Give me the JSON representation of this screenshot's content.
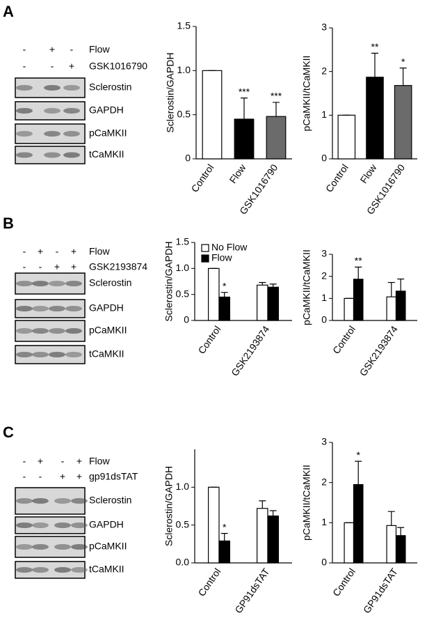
{
  "panels": [
    {
      "label": "A",
      "conditions": [
        {
          "name": "Flow",
          "signs": [
            "-",
            "+",
            "-"
          ]
        },
        {
          "name": "GSK1016790",
          "signs": [
            "-",
            "-",
            "+"
          ]
        }
      ],
      "bands": [
        "Sclerostin",
        "GAPDH",
        "pCaMKII",
        "tCaMKII"
      ]
    },
    {
      "label": "B",
      "conditions": [
        {
          "name": "Flow",
          "signs": [
            "-",
            "+",
            "-",
            "+"
          ]
        },
        {
          "name": "GSK2193874",
          "signs": [
            "-",
            "-",
            "+",
            "+"
          ]
        }
      ],
      "bands": [
        "Sclerostin",
        "GAPDH",
        "pCaMKII",
        "tCaMKII"
      ]
    },
    {
      "label": "C",
      "conditions": [
        {
          "name": "Flow",
          "signs": [
            "-",
            "+",
            "-",
            "+"
          ]
        },
        {
          "name": "gp91dsTAT",
          "signs": [
            "-",
            "-",
            "+",
            "+"
          ]
        }
      ],
      "bands": [
        "Sclerostin",
        "GAPDH",
        "pCaMKII",
        "tCaMKII"
      ]
    }
  ],
  "chart_data": [
    {
      "type": "bar",
      "y_label": "Sclerostin/GAPDH",
      "categories": [
        "Control",
        "Flow",
        "GSK1016790"
      ],
      "values": [
        1.0,
        0.45,
        0.48
      ],
      "errors": [
        0,
        0.24,
        0.16
      ],
      "colors": [
        "#ffffff",
        "#000000",
        "#6b6b6b"
      ],
      "significance": [
        null,
        "***",
        "***"
      ],
      "ylim": [
        0,
        1.5
      ],
      "yticks": [
        0,
        0.5,
        {
          "value": 1.0,
          "label": "1.0"
        },
        1.5
      ]
    },
    {
      "type": "bar",
      "y_label": "pCaMKII/tCaMKII",
      "categories": [
        "Control",
        "Flow",
        "GSK1016790"
      ],
      "values": [
        1.0,
        1.87,
        1.68
      ],
      "errors": [
        0,
        0.55,
        0.4
      ],
      "colors": [
        "#ffffff",
        "#000000",
        "#6b6b6b"
      ],
      "significance": [
        null,
        "**",
        "*"
      ],
      "ylim": [
        0,
        3
      ],
      "yticks": [
        0,
        1,
        2,
        3
      ]
    },
    {
      "type": "bar",
      "y_label": "Sclerostin/GAPDH",
      "categories": [
        "Control",
        "GSK2193874"
      ],
      "legend": "upper left",
      "series": [
        {
          "name": "No Flow",
          "color": "#ffffff",
          "values": [
            1.0,
            0.68
          ],
          "errors": [
            0,
            0.05
          ],
          "significance": [
            null,
            null
          ]
        },
        {
          "name": "Flow",
          "color": "#000000",
          "values": [
            0.45,
            0.64
          ],
          "errors": [
            0.09,
            0.06
          ],
          "significance": [
            "*",
            null
          ]
        }
      ],
      "ylim": [
        0,
        1.5
      ],
      "yticks": [
        0,
        0.5,
        {
          "value": 1.0,
          "label": "1.0"
        },
        1.5
      ]
    },
    {
      "type": "bar",
      "y_label": "pCaMKII/tCaMKII",
      "categories": [
        "Control",
        "GSK2193874"
      ],
      "series": [
        {
          "color": "#ffffff",
          "values": [
            1.0,
            1.07
          ],
          "errors": [
            0,
            0.65
          ],
          "significance": [
            null,
            null
          ]
        },
        {
          "color": "#000000",
          "values": [
            1.87,
            1.33
          ],
          "errors": [
            0.55,
            0.55
          ],
          "significance": [
            "**",
            null
          ]
        }
      ],
      "ylim": [
        0,
        3
      ],
      "yticks": [
        0,
        1,
        2,
        3
      ]
    },
    {
      "type": "bar",
      "y_label": "Sclerostin/GAPDH",
      "categories": [
        "Control",
        "GP91dsTAT"
      ],
      "series": [
        {
          "color": "#ffffff",
          "values": [
            1.0,
            0.72
          ],
          "errors": [
            0,
            0.1
          ],
          "significance": [
            null,
            null
          ]
        },
        {
          "color": "#000000",
          "values": [
            0.29,
            0.62
          ],
          "errors": [
            0.1,
            0.07
          ],
          "significance": [
            "*",
            null
          ]
        }
      ],
      "ylim": [
        0,
        1.5
      ],
      "yticks": [
        {
          "value": 0,
          "label": "0.0"
        },
        0.5,
        {
          "value": 1.0,
          "label": "1.0"
        }
      ]
    },
    {
      "type": "bar",
      "y_label": "pCaMKII/tCaMKII",
      "categories": [
        "Control",
        "GP91dsTAT"
      ],
      "series": [
        {
          "color": "#ffffff",
          "values": [
            1.0,
            0.93
          ],
          "errors": [
            0,
            0.35
          ],
          "significance": [
            null,
            null
          ]
        },
        {
          "color": "#000000",
          "values": [
            1.95,
            0.68
          ],
          "errors": [
            0.58,
            0.2
          ],
          "significance": [
            "*",
            null
          ]
        }
      ],
      "ylim": [
        0,
        3
      ],
      "yticks": [
        0,
        1,
        2,
        3
      ]
    }
  ]
}
